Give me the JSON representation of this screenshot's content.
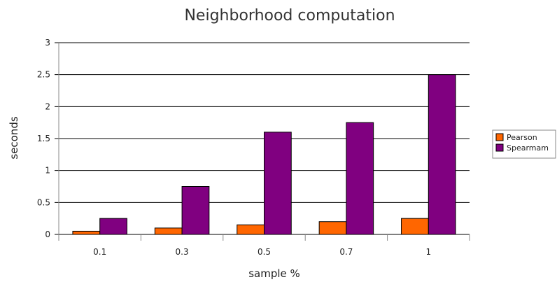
{
  "chart_data": {
    "type": "bar",
    "title": "Neighborhood computation",
    "xlabel": "sample %",
    "ylabel": "seconds",
    "categories": [
      "0.1",
      "0.3",
      "0.5",
      "0.7",
      "1"
    ],
    "ylim": [
      0,
      3
    ],
    "yticks": [
      "0",
      "0.5",
      "1",
      "1.5",
      "2",
      "2.5",
      "3"
    ],
    "grid": true,
    "legend_position": "right",
    "series": [
      {
        "name": "Pearson",
        "color": "#ff6600",
        "values": [
          0.05,
          0.1,
          0.15,
          0.2,
          0.25
        ]
      },
      {
        "name": "Spearmam",
        "color": "#800080",
        "values": [
          0.25,
          0.75,
          1.6,
          1.75,
          2.5
        ]
      }
    ]
  }
}
